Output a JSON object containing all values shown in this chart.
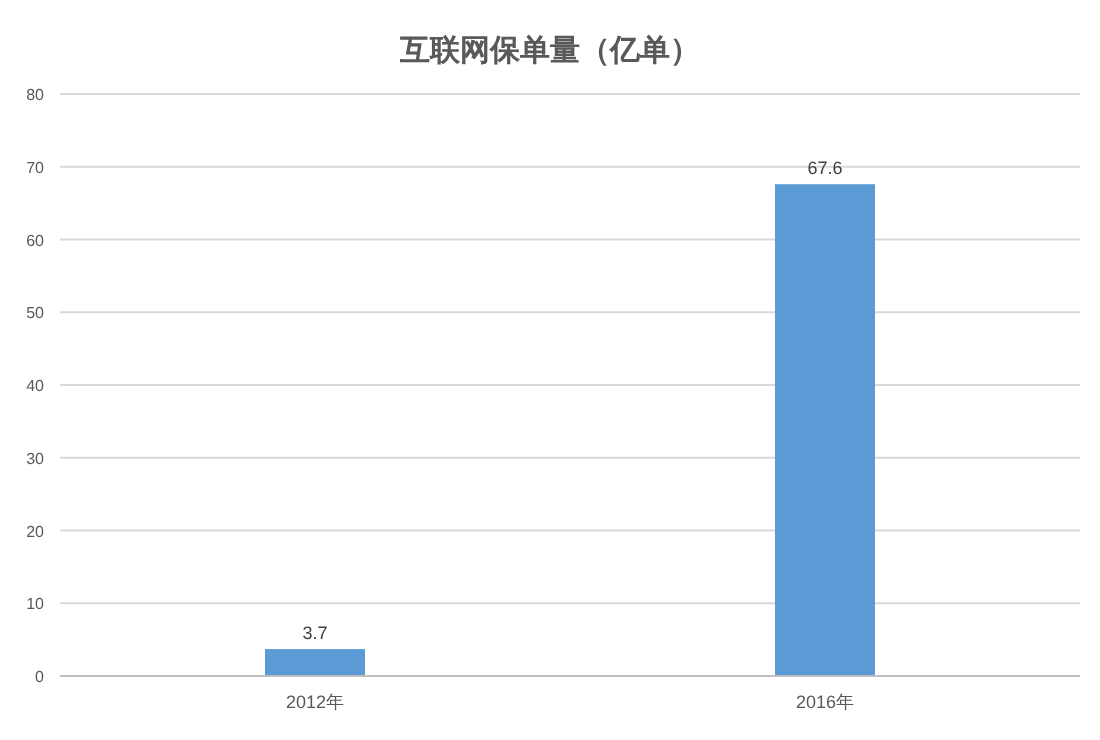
{
  "chart_data": {
    "type": "bar",
    "title": "互联网保单量（亿单）",
    "categories": [
      "2012年",
      "2016年"
    ],
    "values": [
      3.7,
      67.6
    ],
    "color": "#5b9bd5",
    "ylim": [
      0,
      80
    ],
    "yticks": [
      0,
      10,
      20,
      30,
      40,
      50,
      60,
      70,
      80
    ],
    "grid": "y",
    "data_labels": true
  }
}
